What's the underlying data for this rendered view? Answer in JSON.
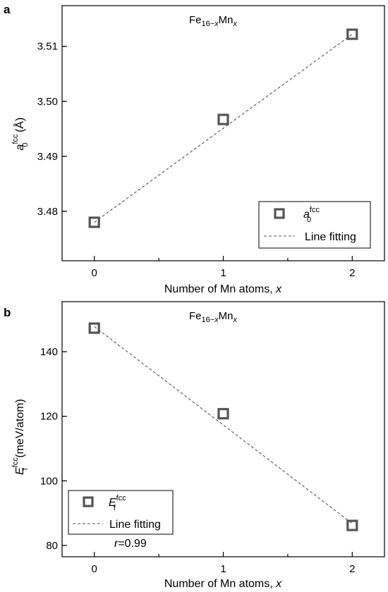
{
  "chart_data": [
    {
      "panel": "a",
      "type": "scatter",
      "title_base": "Fe",
      "title_sub1": "16−",
      "title_sub1_italic": "x",
      "title_mid": "Mn",
      "title_sub2_italic": "x",
      "xlabel": "Number of Mn atoms, ",
      "xlabel_italic": "x",
      "ylabel_symbol": "a",
      "ylabel_sup": "fcc",
      "ylabel_sub": "0",
      "ylabel_unit": " (Å)",
      "x": [
        0,
        1,
        2
      ],
      "y": [
        3.478,
        3.4967,
        3.5122
      ],
      "xlim": [
        -0.25,
        2.25
      ],
      "ylim": [
        3.471,
        3.5174
      ],
      "xticks": [
        0,
        1,
        2
      ],
      "yticks": [
        "3.48",
        "3.49",
        "3.50",
        "3.51"
      ],
      "fit": {
        "x": [
          0,
          2
        ],
        "y": [
          3.478,
          3.5122
        ]
      },
      "legend": {
        "marker_symbol": "a",
        "marker_sup": "fcc",
        "marker_sub": "0",
        "line_label": "Line fitting",
        "placement": "bottom-right"
      },
      "colors": {
        "marker": "#555555",
        "line": "#555555"
      }
    },
    {
      "panel": "b",
      "type": "scatter",
      "title_base": "Fe",
      "title_sub1": "16−",
      "title_sub1_italic": "x",
      "title_mid": "Mn",
      "title_sub2_italic": "x",
      "xlabel": "Number of Mn atoms, ",
      "xlabel_italic": "x",
      "ylabel_symbol": "E",
      "ylabel_sup": "fcc",
      "ylabel_sub": "f",
      "ylabel_unit": " (meV/atom)",
      "x": [
        0,
        1,
        2
      ],
      "y": [
        147.3,
        120.8,
        86.2
      ],
      "xlim": [
        -0.25,
        2.25
      ],
      "ylim": [
        76.5,
        155.5
      ],
      "xticks": [
        0,
        1,
        2
      ],
      "yticks": [
        "80",
        "100",
        "120",
        "140"
      ],
      "fit": {
        "x": [
          0,
          2
        ],
        "y": [
          147.8,
          86.8
        ]
      },
      "legend": {
        "marker_symbol": "E",
        "marker_sup": "fcc",
        "marker_sub": "f",
        "line_label": "Line fitting",
        "placement": "bottom-left"
      },
      "annotation_italic": "r",
      "annotation_value": "=0.99",
      "colors": {
        "marker": "#555555",
        "line": "#555555"
      }
    }
  ]
}
